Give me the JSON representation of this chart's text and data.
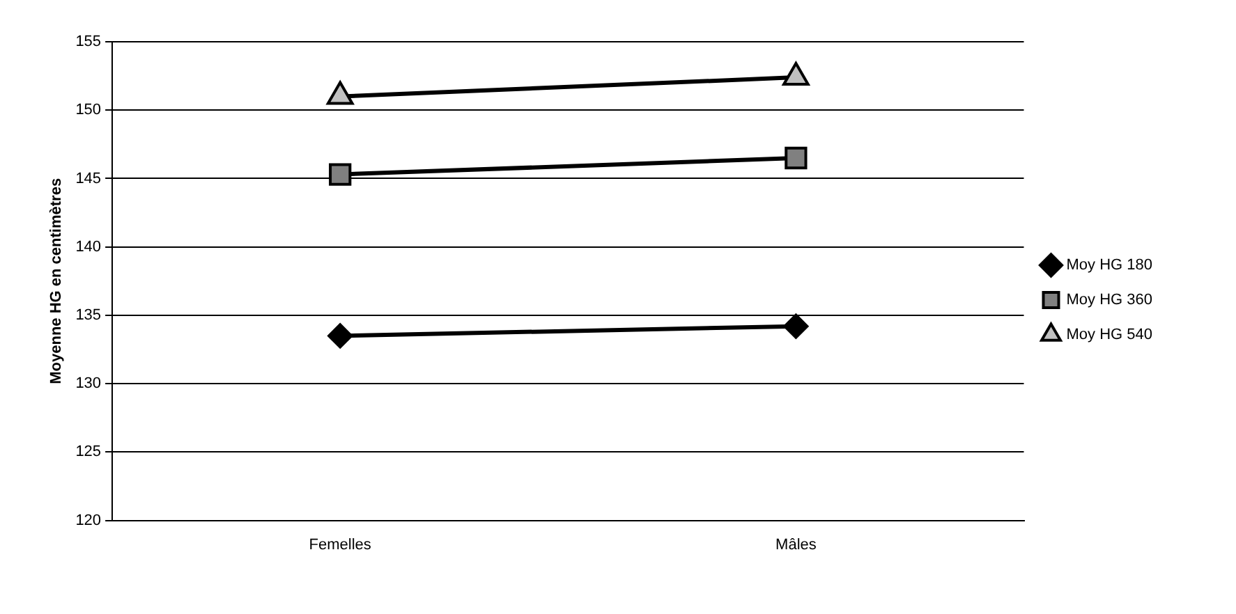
{
  "chart_data": {
    "type": "line",
    "ylabel": "Moyenne HG en centimètres",
    "categories": [
      "Femelles",
      "Mâles"
    ],
    "series": [
      {
        "name": "Moy HG 180",
        "color": "#000000",
        "marker": "diamond",
        "values": [
          133.5,
          134.2
        ]
      },
      {
        "name": "Moy HG 360",
        "color": "#808080",
        "marker": "square",
        "values": [
          145.3,
          146.5
        ]
      },
      {
        "name": "Moy HG 540",
        "color": "#c0c0c0",
        "marker": "triangle",
        "values": [
          151.0,
          152.4
        ]
      }
    ],
    "ylim": [
      120,
      155
    ],
    "yticks": [
      120,
      125,
      130,
      135,
      140,
      145,
      150,
      155
    ],
    "grid": "y",
    "legend": "right",
    "line_style": "solid"
  }
}
